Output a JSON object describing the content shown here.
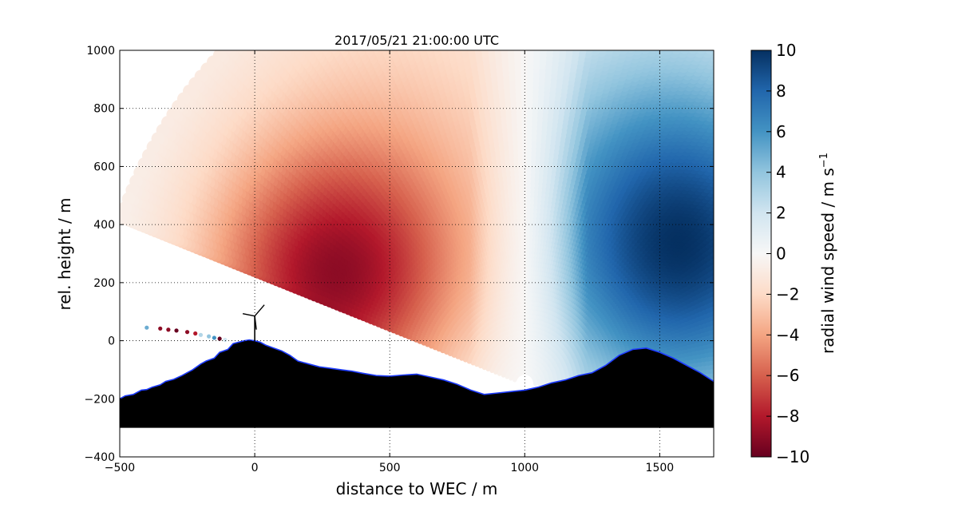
{
  "chart_data": {
    "type": "scatter",
    "title": "2017/05/21 21:00:00 UTC",
    "xlabel": "distance to WEC / m",
    "ylabel": "rel. height / m",
    "xlim": [
      -500,
      1700
    ],
    "ylim": [
      -400,
      1000
    ],
    "xticks": [
      -500,
      0,
      500,
      1000,
      1500
    ],
    "yticks": [
      -400,
      -200,
      0,
      200,
      400,
      600,
      800,
      1000
    ],
    "xtick_labels": [
      "−500",
      "0",
      "500",
      "1000",
      "1500"
    ],
    "ytick_labels": [
      "−400",
      "−200",
      "0",
      "200",
      "400",
      "600",
      "800",
      "1000"
    ],
    "grid": true,
    "colorbar": {
      "label": "radial wind speed / m s",
      "label_superscript": "−1",
      "range": [
        -10,
        10
      ],
      "ticks": [
        -10,
        -8,
        -6,
        -4,
        -2,
        0,
        2,
        4,
        6,
        8,
        10
      ],
      "tick_labels": [
        "−10",
        "−8",
        "−6",
        "−4",
        "−2",
        "0",
        "2",
        "4",
        "6",
        "8",
        "10"
      ],
      "colormap": "RdBu",
      "stops": [
        "#67001f",
        "#b2182b",
        "#d6604d",
        "#f4a582",
        "#fddbc7",
        "#f7f7f7",
        "#d1e5f0",
        "#92c5de",
        "#4393c3",
        "#2166ac",
        "#053061"
      ]
    },
    "scan": {
      "origin": [
        1000,
        -150
      ],
      "range_max_m": 1600,
      "elevation_min_deg": 0.5,
      "elevation_max_deg": 160,
      "field_description": "negative radial speed toward the lidar on the left of x=1000 (max about -8 near x=300, y=200), positive radial speed on the right (up to about +9 near x=1500, y=300)"
    },
    "terrain": {
      "x": [
        -500,
        -480,
        -450,
        -420,
        -400,
        -380,
        -350,
        -330,
        -300,
        -270,
        -250,
        -230,
        -200,
        -180,
        -150,
        -130,
        -100,
        -80,
        -60,
        -40,
        -20,
        0,
        20,
        40,
        70,
        100,
        130,
        160,
        200,
        240,
        280,
        320,
        360,
        400,
        450,
        500,
        550,
        600,
        650,
        700,
        750,
        800,
        850,
        900,
        950,
        1000,
        1050,
        1100,
        1150,
        1200,
        1250,
        1300,
        1350,
        1400,
        1450,
        1500,
        1550,
        1600,
        1650,
        1700
      ],
      "y": [
        -200,
        -190,
        -185,
        -170,
        -168,
        -160,
        -152,
        -140,
        -133,
        -120,
        -110,
        -100,
        -80,
        -70,
        -60,
        -40,
        -30,
        -10,
        -5,
        0,
        3,
        0,
        -5,
        -15,
        -25,
        -35,
        -50,
        -70,
        -80,
        -90,
        -95,
        -100,
        -105,
        -112,
        -120,
        -122,
        -118,
        -115,
        -125,
        -135,
        -150,
        -170,
        -185,
        -180,
        -175,
        -170,
        -160,
        -145,
        -135,
        -120,
        -110,
        -85,
        -50,
        -30,
        -25,
        -40,
        -60,
        -85,
        -110,
        -140
      ],
      "base": -300
    },
    "lidar_points": [
      {
        "x": -400,
        "y": 45,
        "v": 5
      },
      {
        "x": -350,
        "y": 42,
        "v": -9
      },
      {
        "x": -320,
        "y": 38,
        "v": -9
      },
      {
        "x": -290,
        "y": 35,
        "v": -10
      },
      {
        "x": -250,
        "y": 30,
        "v": -9
      },
      {
        "x": -220,
        "y": 25,
        "v": -8
      },
      {
        "x": -200,
        "y": 20,
        "v": 3
      },
      {
        "x": -170,
        "y": 15,
        "v": 4
      },
      {
        "x": -150,
        "y": 10,
        "v": 6
      },
      {
        "x": -130,
        "y": 7,
        "v": -10
      },
      {
        "x": -110,
        "y": 3,
        "v": 2
      }
    ],
    "wec": {
      "x": 0,
      "hub_height": 85
    }
  }
}
